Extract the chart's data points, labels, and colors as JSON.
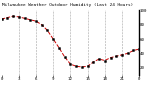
{
  "title": "Milwaukee Weather Outdoor Humidity (Last 24 Hours)",
  "x_values": [
    0,
    1,
    2,
    3,
    4,
    5,
    6,
    7,
    8,
    9,
    10,
    11,
    12,
    13,
    14,
    15,
    16,
    17,
    18,
    19,
    20,
    21,
    22,
    23,
    24
  ],
  "y_values": [
    88,
    90,
    92,
    91,
    89,
    87,
    85,
    80,
    72,
    60,
    48,
    35,
    25,
    22,
    21,
    22,
    28,
    32,
    30,
    34,
    36,
    38,
    40,
    44,
    46
  ],
  "y_min": 10,
  "y_max": 100,
  "line_color": "#cc0000",
  "marker_color": "#000000",
  "background_color": "#ffffff",
  "grid_color": "#999999",
  "title_color": "#000000",
  "tick_color": "#000000",
  "y_ticks": [
    20,
    40,
    60,
    80,
    100
  ],
  "x_tick_positions": [
    0,
    3,
    6,
    9,
    12,
    15,
    18,
    21,
    24
  ],
  "x_tick_labels": [
    "0",
    "3",
    "6",
    "9",
    "12",
    "15",
    "18",
    "21",
    "0"
  ],
  "vgrid_positions": [
    3,
    6,
    9,
    12,
    15,
    18,
    21
  ]
}
